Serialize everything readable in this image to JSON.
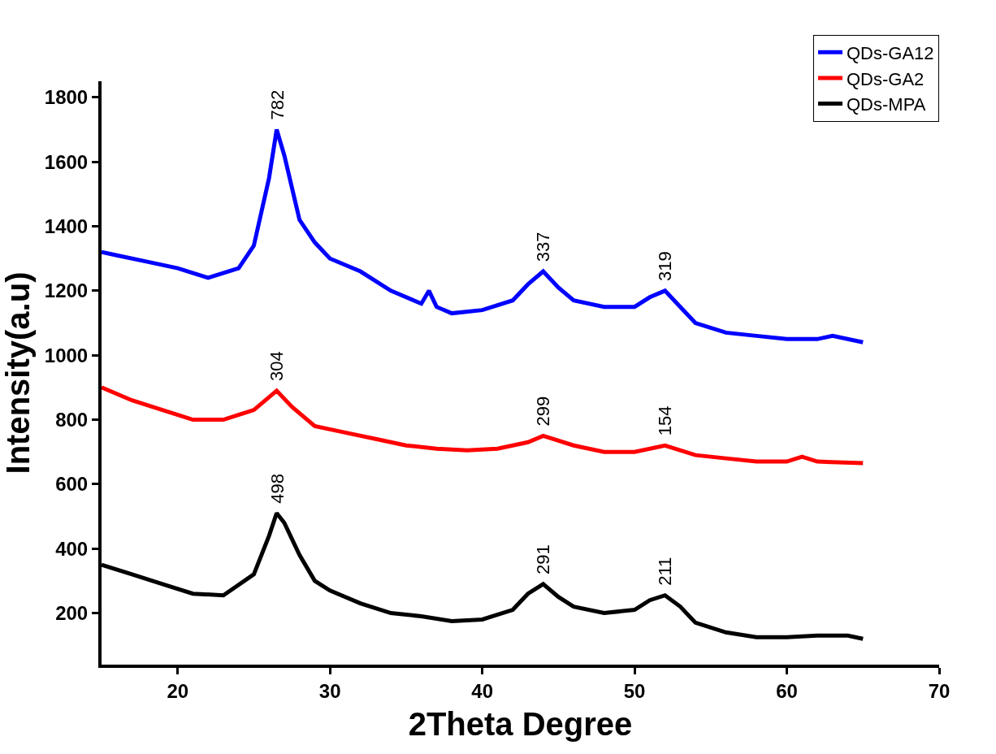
{
  "chart_data": {
    "type": "line",
    "xlabel": "2Theta Degree",
    "ylabel": "Intensity(a.u)",
    "xlim": [
      15,
      70
    ],
    "xticks": [
      20,
      30,
      40,
      50,
      60,
      70
    ],
    "ylim": [
      40,
      1850
    ],
    "yticks": [
      200,
      400,
      600,
      800,
      1000,
      1200,
      1400,
      1600,
      1800
    ],
    "legend": "top right",
    "marker": "none",
    "line_style": "solid",
    "series": [
      {
        "name": "QDs-GA12",
        "color": "#0000ff",
        "x": [
          15,
          16,
          18,
          20,
          22,
          24,
          25,
          26,
          26.5,
          27,
          28,
          29,
          30,
          32,
          34,
          36,
          36.5,
          37,
          38,
          40,
          42,
          43,
          44,
          45,
          46,
          48,
          50,
          51,
          52,
          53,
          54,
          56,
          58,
          60,
          62,
          63,
          65
        ],
        "values": [
          1320,
          1310,
          1290,
          1270,
          1240,
          1270,
          1340,
          1550,
          1700,
          1620,
          1420,
          1350,
          1300,
          1260,
          1200,
          1160,
          1200,
          1150,
          1130,
          1140,
          1170,
          1220,
          1260,
          1210,
          1170,
          1150,
          1150,
          1180,
          1200,
          1150,
          1100,
          1070,
          1060,
          1050,
          1050,
          1060,
          1040
        ]
      },
      {
        "name": "QDs-GA2",
        "color": "#ff0000",
        "x": [
          15,
          17,
          19,
          21,
          23,
          25,
          26.5,
          27.5,
          29,
          31,
          33,
          35,
          37,
          39,
          41,
          43,
          44,
          46,
          48,
          50,
          52,
          54,
          56,
          58,
          60,
          61,
          62,
          65
        ],
        "values": [
          900,
          860,
          830,
          800,
          800,
          830,
          890,
          840,
          780,
          760,
          740,
          720,
          710,
          705,
          710,
          730,
          750,
          720,
          700,
          700,
          720,
          690,
          680,
          670,
          670,
          685,
          670,
          665
        ]
      },
      {
        "name": "QDs-MPA",
        "color": "#000000",
        "x": [
          15,
          17,
          19,
          21,
          23,
          25,
          26,
          26.5,
          27,
          28,
          29,
          30,
          32,
          34,
          36,
          38,
          40,
          42,
          43,
          44,
          45,
          46,
          48,
          50,
          51,
          52,
          53,
          54,
          56,
          58,
          60,
          62,
          64,
          65
        ],
        "values": [
          350,
          320,
          290,
          260,
          255,
          320,
          440,
          510,
          480,
          380,
          300,
          270,
          230,
          200,
          190,
          175,
          180,
          210,
          260,
          290,
          250,
          220,
          200,
          210,
          240,
          255,
          220,
          170,
          140,
          125,
          125,
          130,
          130,
          120
        ]
      }
    ],
    "annotations": [
      {
        "text": "782",
        "x": 26.5,
        "y": 1700
      },
      {
        "text": "337",
        "x": 44,
        "y": 1260
      },
      {
        "text": "319",
        "x": 52,
        "y": 1200
      },
      {
        "text": "304",
        "x": 26.5,
        "y": 890
      },
      {
        "text": "299",
        "x": 44,
        "y": 750
      },
      {
        "text": "154",
        "x": 52,
        "y": 720
      },
      {
        "text": "498",
        "x": 26.5,
        "y": 510
      },
      {
        "text": "291",
        "x": 44,
        "y": 290
      },
      {
        "text": "211",
        "x": 52,
        "y": 255
      }
    ]
  }
}
